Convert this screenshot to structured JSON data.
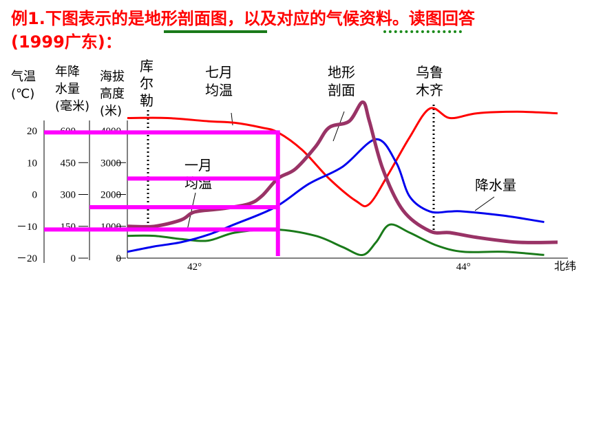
{
  "title": {
    "line1": "例1.下图表示的是地形剖面图，以及对应的气候资料。读图回答",
    "line2": "(1999广东)："
  },
  "axes": {
    "temp_label": [
      "气温",
      "(℃)"
    ],
    "precip_label": [
      "年降",
      "水量",
      "(毫米)"
    ],
    "elev_label": [
      "海拔",
      "高度",
      "(米)"
    ],
    "temp_ticks": [
      "20",
      "10",
      "0",
      "－10",
      "－20"
    ],
    "precip_ticks": [
      "600",
      "450",
      "300",
      "150",
      "0"
    ],
    "elev_ticks": [
      "4000",
      "3000",
      "2000",
      "1000",
      "0"
    ],
    "x_ticks": [
      "42°",
      "44°"
    ],
    "x_label": "北纬"
  },
  "labels": {
    "korla": [
      "库",
      "尔",
      "勒"
    ],
    "july_temp": [
      "七月",
      "均温"
    ],
    "profile": [
      "地形",
      "剖面"
    ],
    "urumqi": [
      "乌鲁",
      "木齐"
    ],
    "jan_temp": [
      "一月",
      "均温"
    ],
    "precipitation": "降水量"
  },
  "colors": {
    "july": "#ff0000",
    "january": "#1a7a1a",
    "precipitation": "#0000ee",
    "terrain": "#993366",
    "highlight": "#ff00ff",
    "title": "#ff0000"
  },
  "chart_data": {
    "type": "line",
    "xlabel": "北纬",
    "x_ticks": [
      "42°",
      "44°"
    ],
    "xlim": [
      41.5,
      44.7
    ],
    "axes": {
      "temperature": {
        "label": "气温(℃)",
        "ylim": [
          -20,
          20
        ]
      },
      "precipitation": {
        "label": "年降水量(毫米)",
        "ylim": [
          0,
          600
        ]
      },
      "elevation": {
        "label": "海拔高度(米)",
        "ylim": [
          0,
          4000
        ]
      }
    },
    "series": [
      {
        "name": "七月均温",
        "axis": "temperature",
        "x": [
          41.5,
          41.8,
          42.1,
          42.3,
          42.5,
          42.62,
          42.8,
          43.0,
          43.2,
          43.3,
          43.45,
          43.6,
          43.75,
          43.9,
          44.1,
          44.4,
          44.7
        ],
        "y": [
          24,
          24,
          23,
          22.5,
          21,
          19.5,
          14,
          5,
          -2,
          -3,
          7,
          18,
          27,
          24,
          25.5,
          26,
          25.5
        ]
      },
      {
        "name": "一月均温",
        "axis": "temperature",
        "x": [
          41.5,
          41.7,
          41.9,
          42.1,
          42.3,
          42.6,
          42.9,
          43.1,
          43.25,
          43.35,
          43.45,
          43.6,
          43.8,
          44.0,
          44.3,
          44.6
        ],
        "y": [
          -13,
          -13,
          -14,
          -14.5,
          -12,
          -11,
          -13,
          -16.5,
          -19,
          -15,
          -9.5,
          -12,
          -16,
          -18,
          -18,
          -19
        ]
      },
      {
        "name": "降水量",
        "axis": "precipitation",
        "x": [
          41.5,
          41.7,
          41.9,
          42.1,
          42.3,
          42.6,
          42.85,
          43.1,
          43.35,
          43.5,
          43.6,
          43.75,
          43.9,
          44.0,
          44.3,
          44.6
        ],
        "y": [
          30,
          55,
          75,
          110,
          160,
          240,
          350,
          430,
          560,
          450,
          290,
          220,
          220,
          220,
          200,
          170
        ]
      },
      {
        "name": "地形剖面",
        "axis": "elevation",
        "x": [
          41.5,
          41.7,
          41.9,
          42.0,
          42.2,
          42.4,
          42.5,
          42.62,
          42.75,
          42.9,
          43.0,
          43.15,
          43.25,
          43.3,
          43.4,
          43.55,
          43.75,
          43.9,
          44.1,
          44.4,
          44.7
        ],
        "y": [
          1000,
          1000,
          1200,
          1450,
          1550,
          1700,
          1950,
          2500,
          2800,
          3500,
          4100,
          4300,
          4900,
          4300,
          2800,
          1500,
          850,
          800,
          650,
          500,
          500
        ]
      }
    ]
  }
}
